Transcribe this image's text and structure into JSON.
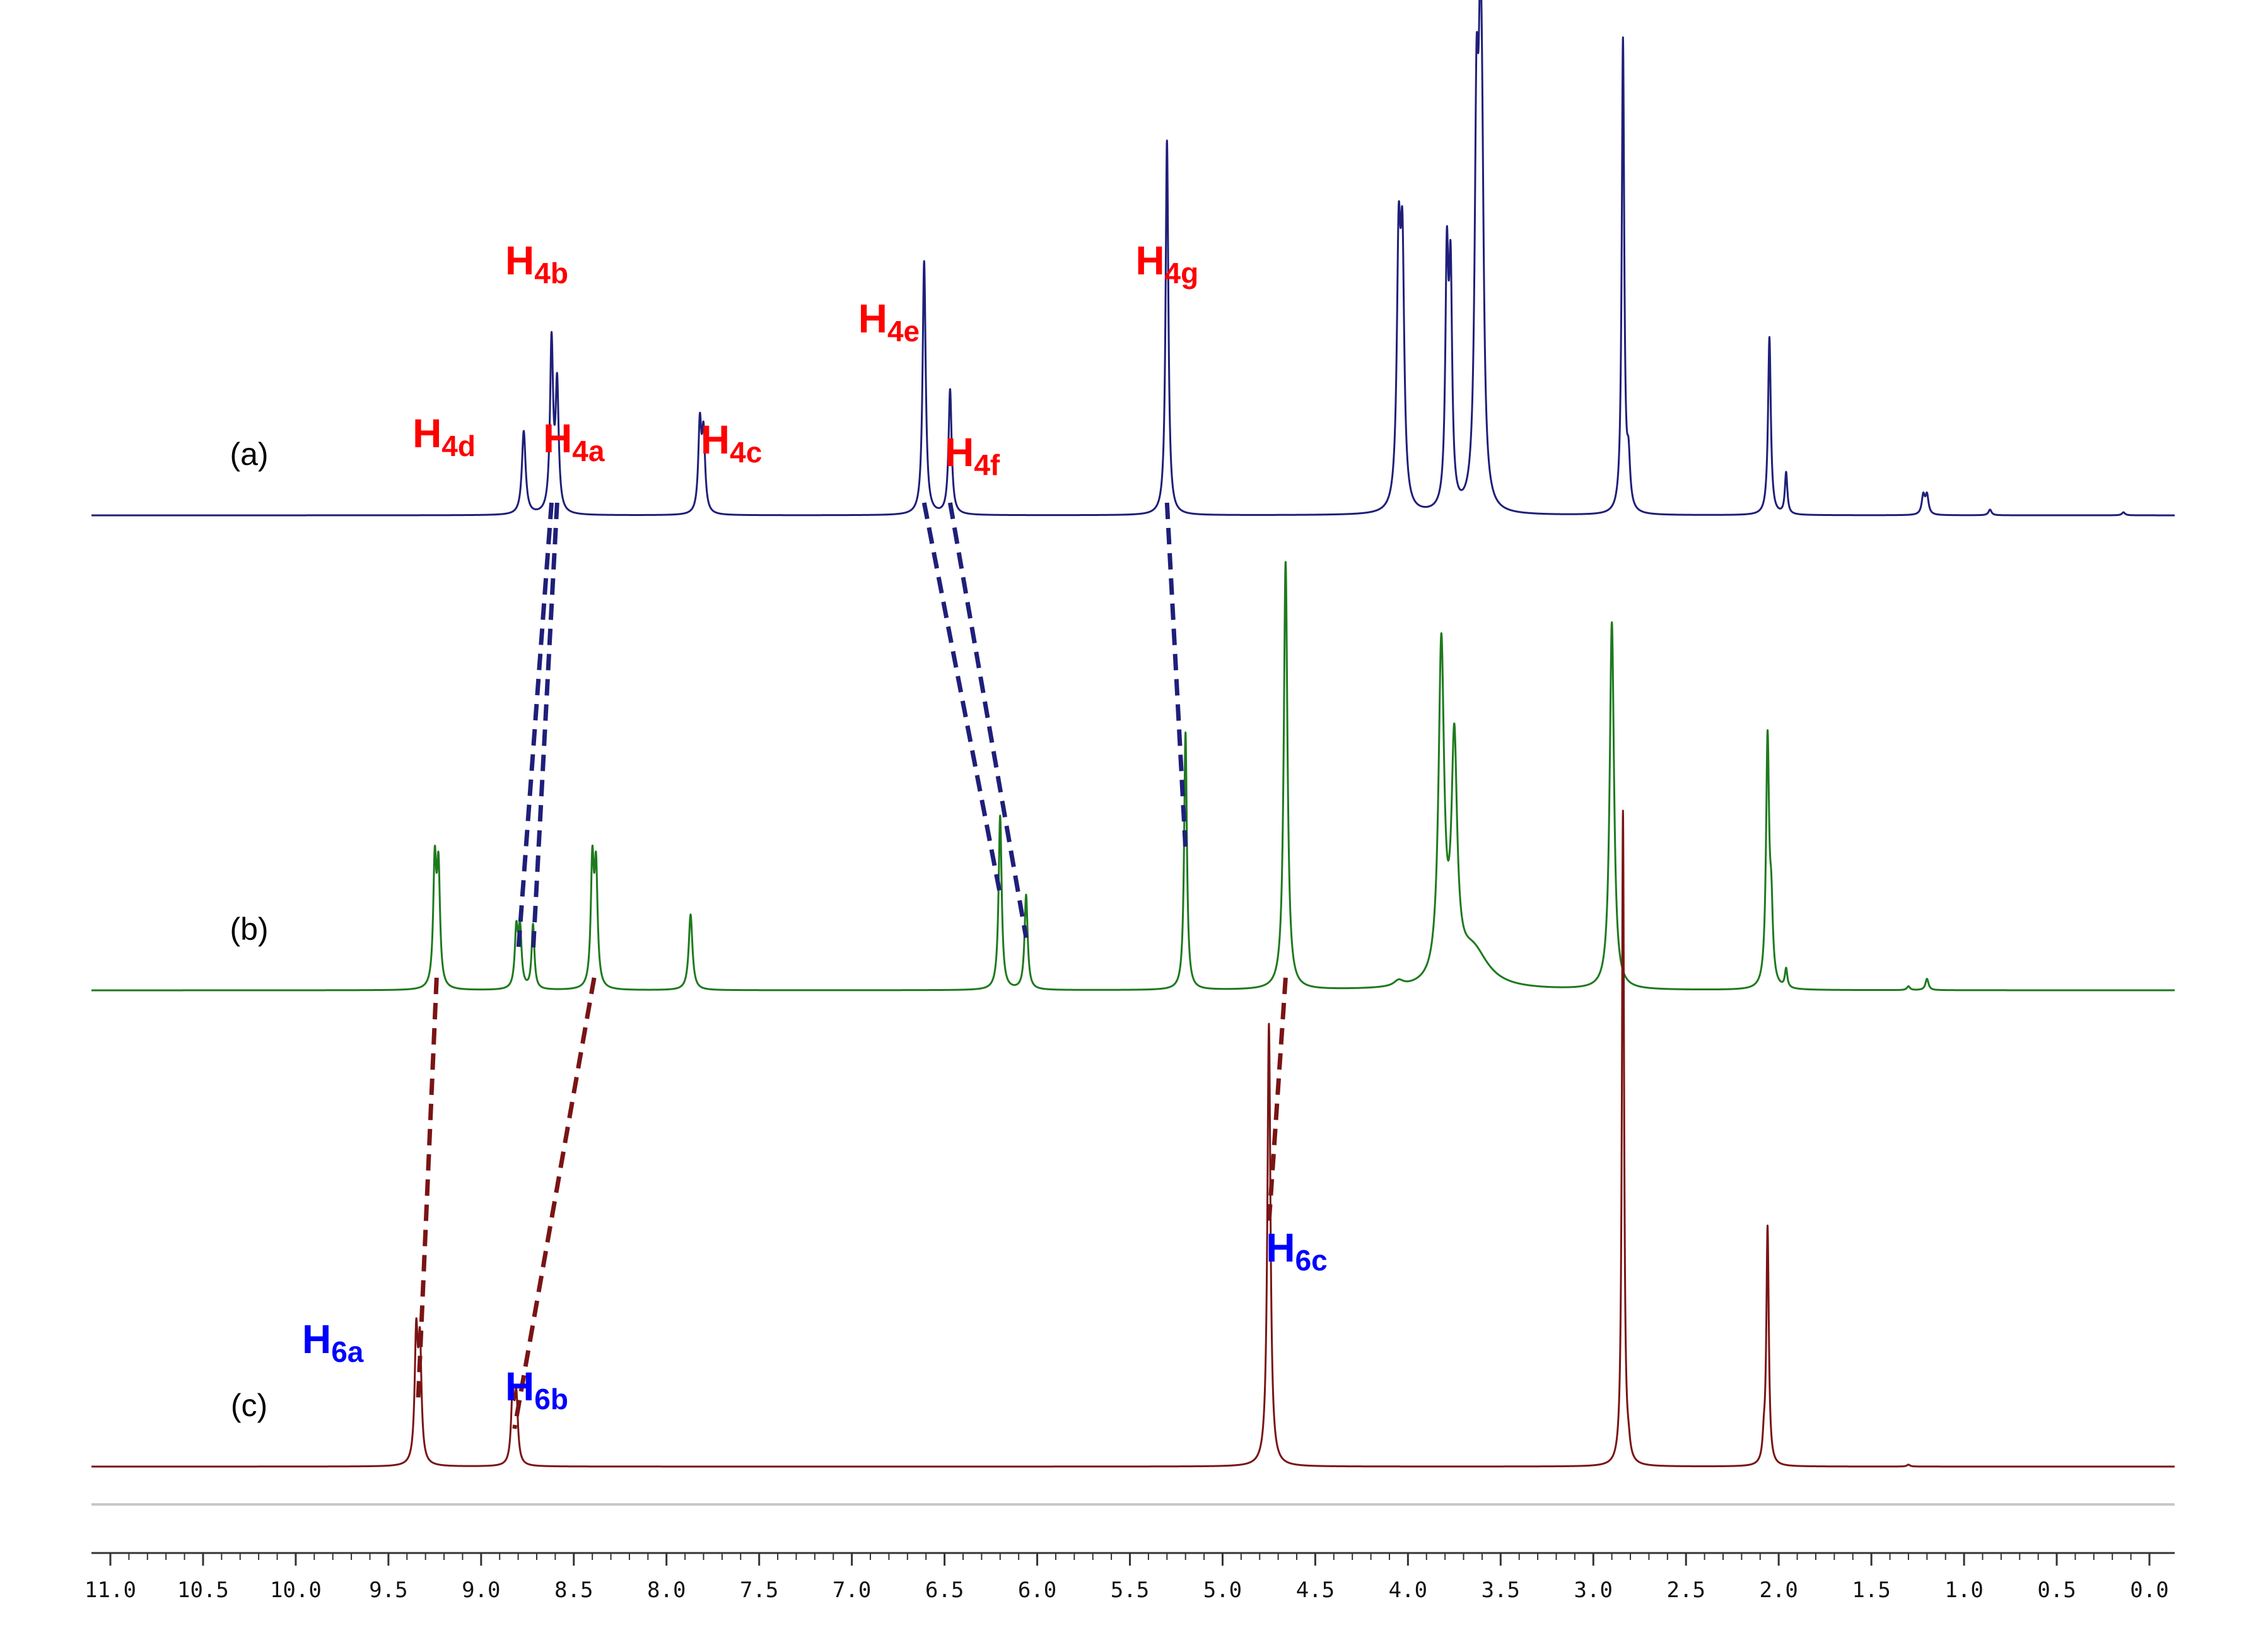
{
  "chart_data": {
    "type": "line",
    "title": "",
    "xlabel": "",
    "ylabel": "",
    "x_axis": {
      "min": 0.0,
      "max": 11.0,
      "reversed": true,
      "major_step": 0.5,
      "tick_labels": [
        "11.0",
        "10.5",
        "10.0",
        "9.5",
        "9.0",
        "8.5",
        "8.0",
        "7.5",
        "7.0",
        "6.5",
        "6.0",
        "5.5",
        "5.0",
        "4.5",
        "4.0",
        "3.5",
        "3.0",
        "2.5",
        "2.0",
        "1.5",
        "1.0",
        "0.5",
        "0.0"
      ]
    },
    "grid": false,
    "legend": "none",
    "series": [
      {
        "name": "(a)",
        "color": "#1f1f7a",
        "linewidth": 3,
        "peaks": [
          {
            "ppm": 8.77,
            "h": 0.22,
            "w": 0.012
          },
          {
            "ppm": 8.62,
            "h": 0.45,
            "w": 0.01
          },
          {
            "ppm": 8.59,
            "h": 0.33,
            "w": 0.01
          },
          {
            "ppm": 7.82,
            "h": 0.23,
            "w": 0.01
          },
          {
            "ppm": 7.8,
            "h": 0.2,
            "w": 0.01
          },
          {
            "ppm": 6.61,
            "h": 0.67,
            "w": 0.01
          },
          {
            "ppm": 6.47,
            "h": 0.33,
            "w": 0.01
          },
          {
            "ppm": 5.3,
            "h": 0.99,
            "w": 0.009
          },
          {
            "ppm": 4.05,
            "h": 0.65,
            "w": 0.012
          },
          {
            "ppm": 4.03,
            "h": 0.63,
            "w": 0.012
          },
          {
            "ppm": 3.79,
            "h": 0.63,
            "w": 0.01
          },
          {
            "ppm": 3.77,
            "h": 0.58,
            "w": 0.01
          },
          {
            "ppm": 3.63,
            "h": 0.94,
            "w": 0.012
          },
          {
            "ppm": 3.61,
            "h": 0.88,
            "w": 0.012
          },
          {
            "ppm": 3.6,
            "h": 0.55,
            "w": 0.012
          },
          {
            "ppm": 2.84,
            "h": 1.25,
            "w": 0.008
          },
          {
            "ppm": 2.81,
            "h": 0.12,
            "w": 0.01
          },
          {
            "ppm": 2.05,
            "h": 0.47,
            "w": 0.009
          },
          {
            "ppm": 1.96,
            "h": 0.11,
            "w": 0.008
          },
          {
            "ppm": 1.22,
            "h": 0.05,
            "w": 0.01
          },
          {
            "ppm": 1.2,
            "h": 0.05,
            "w": 0.01
          },
          {
            "ppm": 0.86,
            "h": 0.015,
            "w": 0.01
          },
          {
            "ppm": 0.14,
            "h": 0.008,
            "w": 0.01
          }
        ]
      },
      {
        "name": "(b)",
        "color": "#1e7a1e",
        "linewidth": 3,
        "peaks": [
          {
            "ppm": 9.25,
            "h": 0.32,
            "w": 0.01
          },
          {
            "ppm": 9.23,
            "h": 0.3,
            "w": 0.01
          },
          {
            "ppm": 8.81,
            "h": 0.15,
            "w": 0.01
          },
          {
            "ppm": 8.79,
            "h": 0.15,
            "w": 0.01
          },
          {
            "ppm": 8.72,
            "h": 0.17,
            "w": 0.009
          },
          {
            "ppm": 8.4,
            "h": 0.32,
            "w": 0.01
          },
          {
            "ppm": 8.38,
            "h": 0.3,
            "w": 0.01
          },
          {
            "ppm": 7.87,
            "h": 0.2,
            "w": 0.012
          },
          {
            "ppm": 6.2,
            "h": 0.46,
            "w": 0.01
          },
          {
            "ppm": 6.06,
            "h": 0.25,
            "w": 0.01
          },
          {
            "ppm": 5.2,
            "h": 0.68,
            "w": 0.009
          },
          {
            "ppm": 4.66,
            "h": 1.13,
            "w": 0.012
          },
          {
            "ppm": 4.05,
            "h": 0.015,
            "w": 0.03
          },
          {
            "ppm": 3.82,
            "h": 0.88,
            "w": 0.018
          },
          {
            "ppm": 3.75,
            "h": 0.6,
            "w": 0.018
          },
          {
            "ppm": 3.65,
            "h": 0.1,
            "w": 0.1
          },
          {
            "ppm": 2.9,
            "h": 0.97,
            "w": 0.014
          },
          {
            "ppm": 2.06,
            "h": 0.65,
            "w": 0.01
          },
          {
            "ppm": 2.04,
            "h": 0.18,
            "w": 0.01
          },
          {
            "ppm": 1.96,
            "h": 0.05,
            "w": 0.008
          },
          {
            "ppm": 1.2,
            "h": 0.03,
            "w": 0.01
          },
          {
            "ppm": 1.3,
            "h": 0.01,
            "w": 0.01
          }
        ]
      },
      {
        "name": "(c)",
        "color": "#7a1414",
        "linewidth": 3,
        "peaks": [
          {
            "ppm": 9.35,
            "h": 0.33,
            "w": 0.01
          },
          {
            "ppm": 9.33,
            "h": 0.3,
            "w": 0.01
          },
          {
            "ppm": 8.83,
            "h": 0.18,
            "w": 0.01
          },
          {
            "ppm": 8.81,
            "h": 0.17,
            "w": 0.01
          },
          {
            "ppm": 4.75,
            "h": 1.17,
            "w": 0.01
          },
          {
            "ppm": 2.84,
            "h": 1.73,
            "w": 0.007
          },
          {
            "ppm": 2.81,
            "h": 0.03,
            "w": 0.01
          },
          {
            "ppm": 2.06,
            "h": 0.63,
            "w": 0.008
          },
          {
            "ppm": 2.08,
            "h": 0.05,
            "w": 0.008
          },
          {
            "ppm": 1.3,
            "h": 0.005,
            "w": 0.01
          }
        ]
      }
    ],
    "annotations": [
      {
        "series": "(a)",
        "main": "H",
        "sub": "4d",
        "color": "#ff0000",
        "near_ppm": 9.2
      },
      {
        "series": "(a)",
        "main": "H",
        "sub": "4b",
        "color": "#ff0000",
        "near_ppm": 8.7
      },
      {
        "series": "(a)",
        "main": "H",
        "sub": "4a",
        "color": "#ff0000",
        "near_ppm": 8.5
      },
      {
        "series": "(a)",
        "main": "H",
        "sub": "4c",
        "color": "#ff0000",
        "near_ppm": 7.65
      },
      {
        "series": "(a)",
        "main": "H",
        "sub": "4e",
        "color": "#ff0000",
        "near_ppm": 6.8
      },
      {
        "series": "(a)",
        "main": "H",
        "sub": "4f",
        "color": "#ff0000",
        "near_ppm": 6.35
      },
      {
        "series": "(a)",
        "main": "H",
        "sub": "4g",
        "color": "#ff0000",
        "near_ppm": 5.3
      },
      {
        "series": "(c)",
        "main": "H",
        "sub": "6a",
        "color": "#0000ff",
        "near_ppm": 9.8
      },
      {
        "series": "(c)",
        "main": "H",
        "sub": "6b",
        "color": "#0000ff",
        "near_ppm": 8.7
      },
      {
        "series": "(c)",
        "main": "H",
        "sub": "6c",
        "color": "#0000ff",
        "near_ppm": 4.6
      }
    ],
    "connectors": [
      {
        "from_series": "(a)",
        "from_ppm": 8.62,
        "to_series": "(b)",
        "to_ppm": 8.8,
        "color": "#1f1f7a"
      },
      {
        "from_series": "(a)",
        "from_ppm": 8.59,
        "to_series": "(b)",
        "to_ppm": 8.72,
        "color": "#1f1f7a"
      },
      {
        "from_series": "(a)",
        "from_ppm": 6.61,
        "to_series": "(b)",
        "to_ppm": 6.2,
        "color": "#1f1f7a"
      },
      {
        "from_series": "(a)",
        "from_ppm": 6.47,
        "to_series": "(b)",
        "to_ppm": 6.06,
        "color": "#1f1f7a"
      },
      {
        "from_series": "(a)",
        "from_ppm": 5.3,
        "to_series": "(b)",
        "to_ppm": 5.2,
        "color": "#1f1f7a"
      },
      {
        "from_series": "(b)",
        "from_ppm": 9.24,
        "to_series": "(c)",
        "to_ppm": 9.34,
        "color": "#7a1414"
      },
      {
        "from_series": "(b)",
        "from_ppm": 8.39,
        "to_series": "(c)",
        "to_ppm": 8.82,
        "color": "#7a1414"
      },
      {
        "from_series": "(b)",
        "from_ppm": 4.66,
        "to_series": "(c)",
        "to_ppm": 4.75,
        "color": "#7a1414"
      }
    ]
  }
}
